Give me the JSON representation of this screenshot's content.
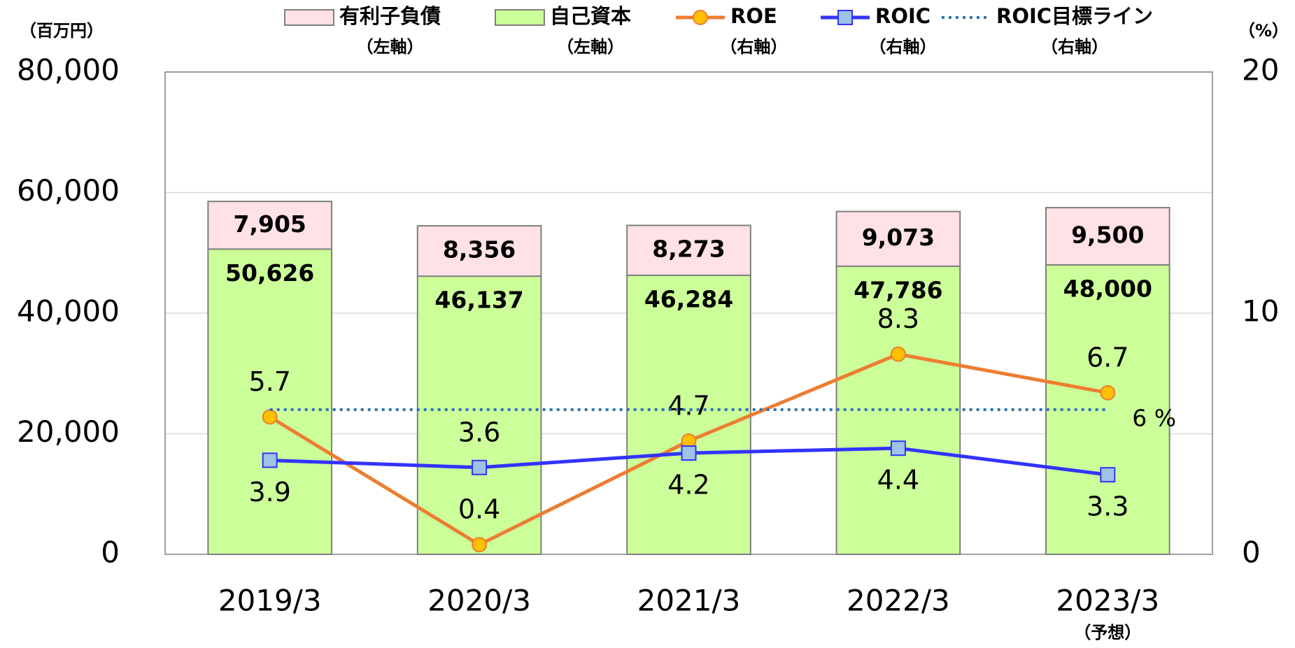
{
  "chart_data": {
    "type": "bar",
    "y_axis_label": "（百万円）",
    "y2_axis_label": "（%）",
    "categories": [
      "2019/3",
      "2020/3",
      "2021/3",
      "2022/3",
      "2023/3"
    ],
    "category_notes": [
      null,
      null,
      null,
      null,
      "（予想）"
    ],
    "ylim": [
      0,
      80000
    ],
    "yticks": [
      0,
      {
        "value": 20000,
        "label": "20,000"
      },
      {
        "value": 40000,
        "label": "40,000"
      },
      {
        "value": 60000,
        "label": "60,000"
      },
      {
        "value": 80000,
        "label": "80,000"
      }
    ],
    "y2lim": [
      0,
      20
    ],
    "y2ticks": [
      0,
      10,
      20
    ],
    "grid": true,
    "series": [
      {
        "name": "自己資本",
        "legend_note": "（左軸）",
        "type": "bar",
        "color": "#ccff99",
        "values": [
          50626,
          46137,
          46284,
          47786,
          48000
        ],
        "value_labels": [
          "50,626",
          "46,137",
          "46,284",
          "47,786",
          "48,000"
        ]
      },
      {
        "name": "有利子負債",
        "legend_note": "（左軸）",
        "type": "bar",
        "color": "#ffe1e6",
        "values": [
          7905,
          8356,
          8273,
          9073,
          9500
        ],
        "value_labels": [
          "7,905",
          "8,356",
          "8,273",
          "9,073",
          "9,500"
        ]
      },
      {
        "name": "ROE",
        "legend_note": "（右軸）",
        "type": "line",
        "axis": "y2",
        "color": "#ed7d31",
        "marker_color": "#ffc000",
        "label_color": "#c55a11",
        "values": [
          5.7,
          0.4,
          4.7,
          8.3,
          6.7
        ]
      },
      {
        "name": "ROIC",
        "legend_note": "（右軸）",
        "type": "line",
        "axis": "y2",
        "color": "#3333ff",
        "marker_color": "#9dc3e6",
        "label_color": "#3333ff",
        "values": [
          3.9,
          3.6,
          4.2,
          4.4,
          3.3
        ]
      },
      {
        "name": "ROIC目標ライン",
        "legend_note": "（右軸）",
        "type": "target",
        "axis": "y2",
        "color": "#2e75b6",
        "values": [
          6,
          6,
          6,
          6,
          6
        ],
        "end_label": "6 %"
      }
    ]
  }
}
